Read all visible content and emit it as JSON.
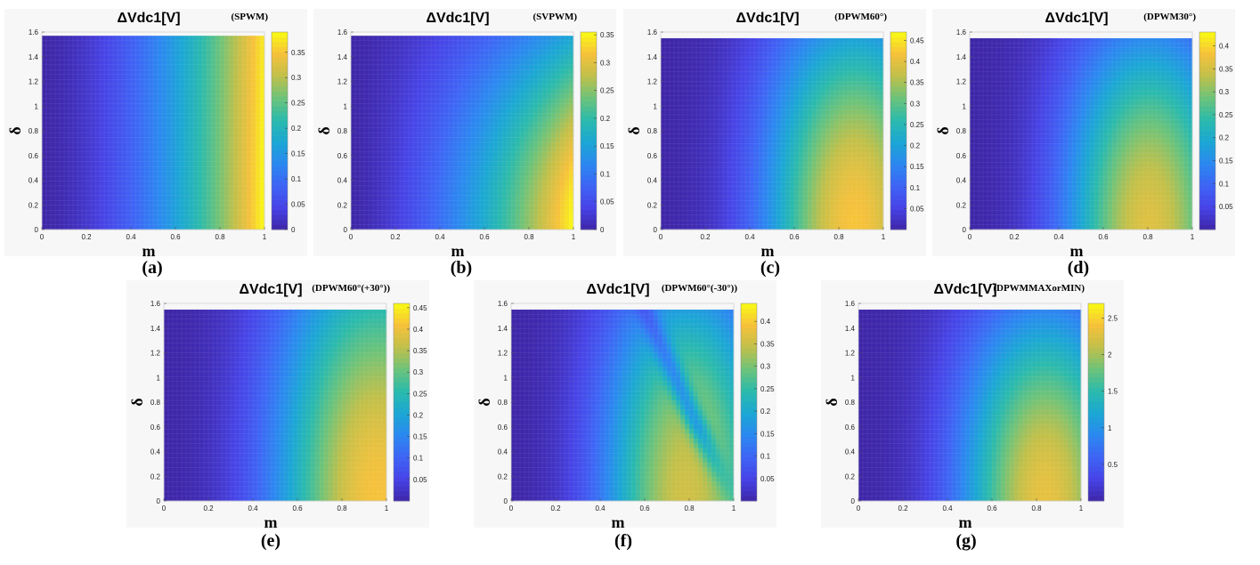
{
  "colors": {
    "colormap": [
      "#3e26a8",
      "#4743e6",
      "#3e64f5",
      "#2b88f0",
      "#1ba7d4",
      "#2bbaac",
      "#6cc37a",
      "#c0c04a",
      "#f6c13b",
      "#f9fb14"
    ],
    "panel_bg": "#f7f7f7",
    "grid_line": "#ffffff"
  },
  "chart_data": [
    {
      "type": "heatmap",
      "panel": "(a)",
      "title": "ΔVdc1[V]",
      "subtitle": "(SPWM)",
      "xlabel": "m",
      "ylabel": "δ",
      "xlim": [
        0,
        1
      ],
      "ylim": [
        0,
        1.6
      ],
      "ymax_data": 1.57,
      "x_ticks": [
        "0",
        "0.2",
        "0.4",
        "0.6",
        "0.8",
        "1"
      ],
      "y_ticks": [
        "0",
        "0.2",
        "0.4",
        "0.6",
        "0.8",
        "1",
        "1.2",
        "1.4",
        "1.6"
      ],
      "colorbar_range": [
        0,
        0.39
      ],
      "colorbar_ticks": [
        {
          "v": 0,
          "t": "0"
        },
        {
          "v": 0.05,
          "t": "0.05"
        },
        {
          "v": 0.1,
          "t": "0.1"
        },
        {
          "v": 0.15,
          "t": "0.15"
        },
        {
          "v": 0.2,
          "t": "0.2"
        },
        {
          "v": 0.25,
          "t": "0.25"
        },
        {
          "v": 0.3,
          "t": "0.3"
        },
        {
          "v": 0.35,
          "t": "0.35"
        }
      ],
      "model": "spwm",
      "peak": 0.39
    },
    {
      "type": "heatmap",
      "panel": "(b)",
      "title": "ΔVdc1[V]",
      "subtitle": "(SVPWM)",
      "xlabel": "m",
      "ylabel": "δ",
      "xlim": [
        0,
        1
      ],
      "ylim": [
        0,
        1.6
      ],
      "ymax_data": 1.57,
      "x_ticks": [
        "0",
        "0.2",
        "0.4",
        "0.6",
        "0.8",
        "1"
      ],
      "y_ticks": [
        "0",
        "0.2",
        "0.4",
        "0.6",
        "0.8",
        "1",
        "1.2",
        "1.4",
        "1.6"
      ],
      "colorbar_range": [
        0,
        0.355
      ],
      "colorbar_ticks": [
        {
          "v": 0,
          "t": "0"
        },
        {
          "v": 0.05,
          "t": "0.05"
        },
        {
          "v": 0.1,
          "t": "0.1"
        },
        {
          "v": 0.15,
          "t": "0.15"
        },
        {
          "v": 0.2,
          "t": "0.2"
        },
        {
          "v": 0.25,
          "t": "0.25"
        },
        {
          "v": 0.3,
          "t": "0.3"
        },
        {
          "v": 0.35,
          "t": "0.35"
        }
      ],
      "model": "svpwm",
      "peak": 0.355
    },
    {
      "type": "heatmap",
      "panel": "(c)",
      "title": "ΔVdc1[V]",
      "subtitle": "(DPWM60°)",
      "xlabel": "m",
      "ylabel": "δ",
      "xlim": [
        0,
        1
      ],
      "ylim": [
        0,
        1.6
      ],
      "ymax_data": 1.55,
      "x_ticks": [
        "0",
        "0.2",
        "0.4",
        "0.6",
        "0.8",
        "1"
      ],
      "y_ticks": [
        "0",
        "0.2",
        "0.4",
        "0.6",
        "0.8",
        "1",
        "1.2",
        "1.4",
        "1.6"
      ],
      "colorbar_range": [
        0,
        0.47
      ],
      "colorbar_ticks": [
        {
          "v": 0.05,
          "t": "0.05"
        },
        {
          "v": 0.1,
          "t": "0.1"
        },
        {
          "v": 0.15,
          "t": "0.15"
        },
        {
          "v": 0.2,
          "t": "0.2"
        },
        {
          "v": 0.25,
          "t": "0.25"
        },
        {
          "v": 0.3,
          "t": "0.3"
        },
        {
          "v": 0.35,
          "t": "0.35"
        },
        {
          "v": 0.4,
          "t": "0.4"
        },
        {
          "v": 0.45,
          "t": "0.45"
        }
      ],
      "model": "dpwm60",
      "peak": 0.47
    },
    {
      "type": "heatmap",
      "panel": "(d)",
      "title": "ΔVdc1[V]",
      "subtitle": "(DPWM30°)",
      "xlabel": "m",
      "ylabel": "δ",
      "xlim": [
        0,
        1
      ],
      "ylim": [
        0,
        1.6
      ],
      "ymax_data": 1.55,
      "x_ticks": [
        "0",
        "0.2",
        "0.4",
        "0.6",
        "0.8",
        "1"
      ],
      "y_ticks": [
        "0",
        "0.2",
        "0.4",
        "0.6",
        "0.8",
        "1",
        "1.2",
        "1.4",
        "1.6"
      ],
      "colorbar_range": [
        0,
        0.43
      ],
      "colorbar_ticks": [
        {
          "v": 0.05,
          "t": "0.05"
        },
        {
          "v": 0.1,
          "t": "0.1"
        },
        {
          "v": 0.15,
          "t": "0.15"
        },
        {
          "v": 0.2,
          "t": "0.2"
        },
        {
          "v": 0.25,
          "t": "0.25"
        },
        {
          "v": 0.3,
          "t": "0.3"
        },
        {
          "v": 0.35,
          "t": "0.35"
        },
        {
          "v": 0.4,
          "t": "0.4"
        }
      ],
      "model": "dpwm30",
      "peak": 0.43
    },
    {
      "type": "heatmap",
      "panel": "(e)",
      "title": "ΔVdc1[V]",
      "subtitle": "(DPWM60°(+30°))",
      "xlabel": "m",
      "ylabel": "δ",
      "xlim": [
        0,
        1
      ],
      "ylim": [
        0,
        1.6
      ],
      "ymax_data": 1.55,
      "x_ticks": [
        "0",
        "0.2",
        "0.4",
        "0.6",
        "0.8",
        "1"
      ],
      "y_ticks": [
        "0",
        "0.2",
        "0.4",
        "0.6",
        "0.8",
        "1",
        "1.2",
        "1.4",
        "1.6"
      ],
      "colorbar_range": [
        0,
        0.46
      ],
      "colorbar_ticks": [
        {
          "v": 0.05,
          "t": "0.05"
        },
        {
          "v": 0.1,
          "t": "0.1"
        },
        {
          "v": 0.15,
          "t": "0.15"
        },
        {
          "v": 0.2,
          "t": "0.2"
        },
        {
          "v": 0.25,
          "t": "0.25"
        },
        {
          "v": 0.3,
          "t": "0.3"
        },
        {
          "v": 0.35,
          "t": "0.35"
        },
        {
          "v": 0.4,
          "t": "0.4"
        },
        {
          "v": 0.45,
          "t": "0.45"
        }
      ],
      "model": "dpwmp30",
      "peak": 0.46
    },
    {
      "type": "heatmap",
      "panel": "(f)",
      "title": "ΔVdc1[V]",
      "subtitle": "(DPWM60°(-30°))",
      "xlabel": "m",
      "ylabel": "δ",
      "xlim": [
        0,
        1
      ],
      "ylim": [
        0,
        1.6
      ],
      "ymax_data": 1.55,
      "x_ticks": [
        "0",
        "0.2",
        "0.4",
        "0.6",
        "0.8",
        "1"
      ],
      "y_ticks": [
        "0",
        "0.2",
        "0.4",
        "0.6",
        "0.8",
        "1",
        "1.2",
        "1.4",
        "1.6"
      ],
      "colorbar_range": [
        0,
        0.44
      ],
      "colorbar_ticks": [
        {
          "v": 0.05,
          "t": "0.05"
        },
        {
          "v": 0.1,
          "t": "0.1"
        },
        {
          "v": 0.15,
          "t": "0.15"
        },
        {
          "v": 0.2,
          "t": "0.2"
        },
        {
          "v": 0.25,
          "t": "0.25"
        },
        {
          "v": 0.3,
          "t": "0.3"
        },
        {
          "v": 0.35,
          "t": "0.35"
        },
        {
          "v": 0.4,
          "t": "0.4"
        }
      ],
      "model": "dpwmm30",
      "peak": 0.44
    },
    {
      "type": "heatmap",
      "panel": "(g)",
      "title": "ΔVdc1[V]",
      "subtitle": "(DPWMMAXorMIN)",
      "xlabel": "m",
      "ylabel": "δ",
      "xlim": [
        0,
        1
      ],
      "ylim": [
        0,
        1.6
      ],
      "ymax_data": 1.55,
      "x_ticks": [
        "0",
        "0.2",
        "0.4",
        "0.6",
        "0.8",
        "1"
      ],
      "y_ticks": [
        "0",
        "0.2",
        "0.4",
        "0.6",
        "0.8",
        "1",
        "1.2",
        "1.4",
        "1.6"
      ],
      "colorbar_range": [
        0,
        2.7
      ],
      "colorbar_ticks": [
        {
          "v": 0.5,
          "t": "0.5"
        },
        {
          "v": 1,
          "t": "1"
        },
        {
          "v": 1.5,
          "t": "1.5"
        },
        {
          "v": 2,
          "t": "2"
        },
        {
          "v": 2.5,
          "t": "2.5"
        }
      ],
      "model": "dpwmmax",
      "peak": 2.7
    }
  ]
}
